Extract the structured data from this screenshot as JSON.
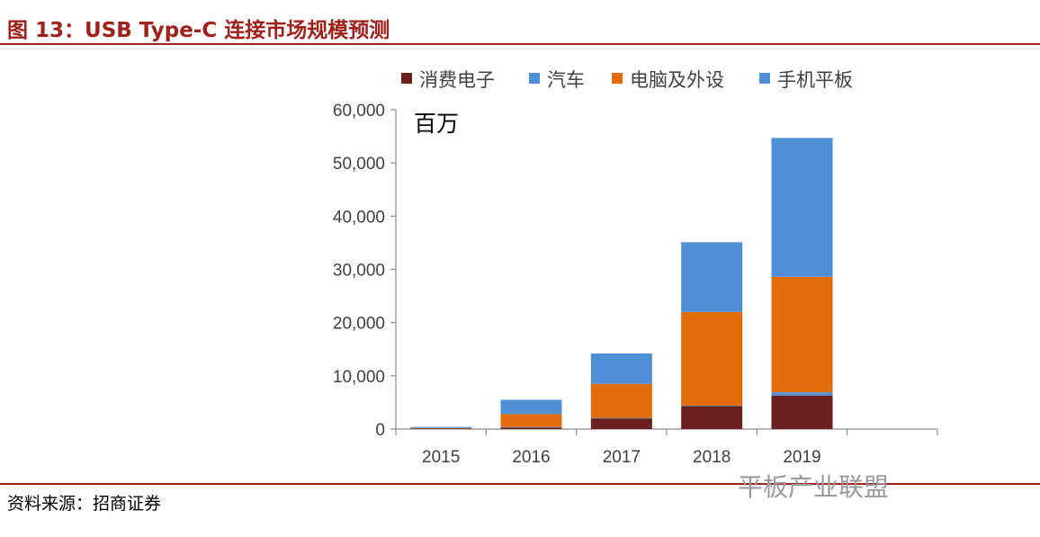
{
  "header": {
    "title": "图 13：USB Type-C 连接市场规模预测"
  },
  "footer": {
    "source": "资料来源：招商证券",
    "watermark": "平板产业联盟"
  },
  "chart_data": {
    "type": "bar",
    "stacked": true,
    "title": "",
    "unit_label": "百万",
    "xlabel": "",
    "ylabel": "",
    "ylim": [
      0,
      60000
    ],
    "yticks": [
      0,
      10000,
      20000,
      30000,
      40000,
      50000,
      60000
    ],
    "ytick_labels": [
      "0",
      "10,000",
      "20,000",
      "30,000",
      "40,000",
      "50,000",
      "60,000"
    ],
    "categories": [
      "2015",
      "2016",
      "2017",
      "2018",
      "2019",
      ""
    ],
    "legend_position": "top",
    "grid": false,
    "series": [
      {
        "name": "消费电子",
        "color": "#6b1f1f",
        "values": [
          100,
          300,
          2000,
          4300,
          6300,
          0
        ]
      },
      {
        "name": "汽车",
        "color": "#4f8fd6",
        "values": [
          0,
          100,
          100,
          100,
          600,
          0
        ]
      },
      {
        "name": "电脑及外设",
        "color": "#e26c0a",
        "values": [
          100,
          2400,
          6400,
          17600,
          21700,
          0
        ]
      },
      {
        "name": "手机平板",
        "color": "#4f8fd6",
        "values": [
          200,
          2700,
          5700,
          13100,
          26100,
          0
        ]
      }
    ]
  }
}
